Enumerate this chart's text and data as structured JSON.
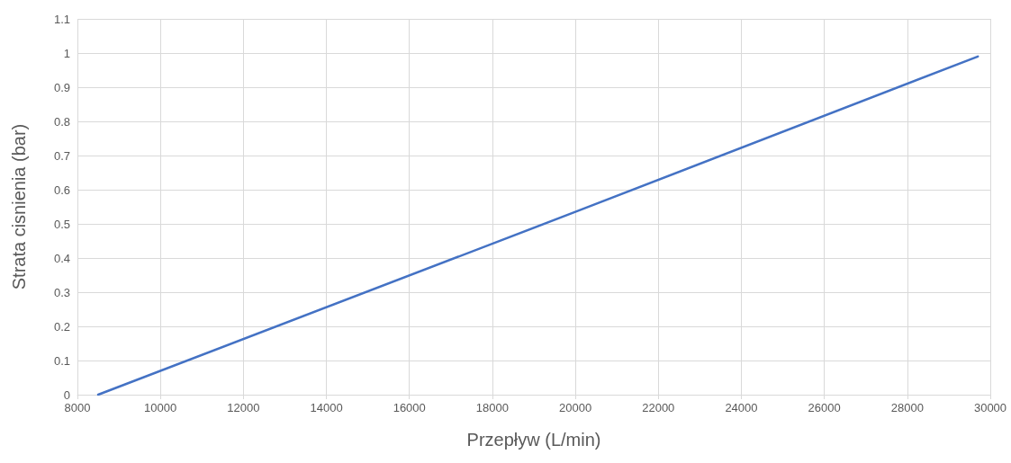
{
  "chart_data": {
    "type": "line",
    "xlabel": "Przepływ (L/min)",
    "ylabel": "Strata cisnienia (bar)",
    "x": [
      8500,
      20000,
      29700
    ],
    "series": [
      {
        "color": "#4472c4",
        "values": [
          0,
          0.535,
          0.99
        ]
      }
    ],
    "xlim": [
      8000,
      30000
    ],
    "xticks": [
      8000,
      10000,
      12000,
      14000,
      16000,
      18000,
      20000,
      22000,
      24000,
      26000,
      28000,
      30000
    ],
    "ylim": [
      0,
      1.1
    ],
    "yticks": [
      0,
      0.1,
      0.2,
      0.3,
      0.4,
      0.5,
      0.6,
      0.7,
      0.8,
      0.9,
      1,
      1.1
    ],
    "grid": true,
    "marker": "none",
    "line_style": "solid"
  }
}
